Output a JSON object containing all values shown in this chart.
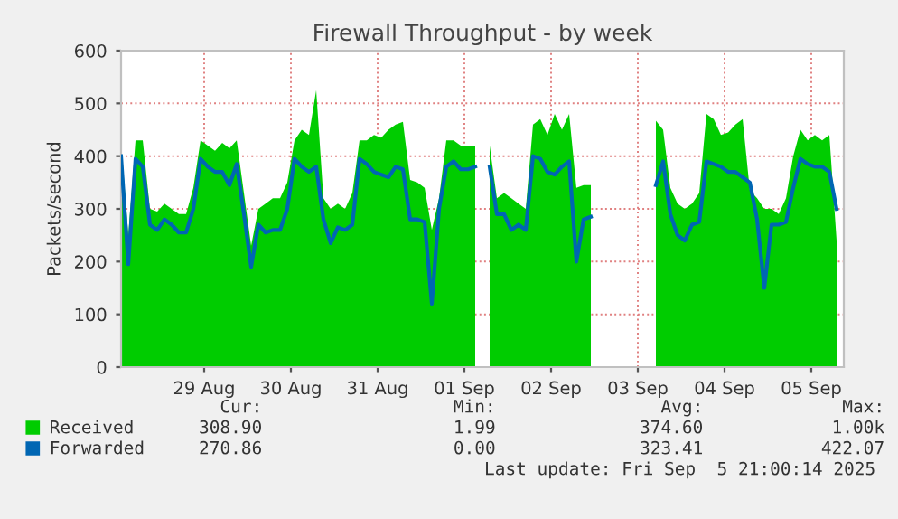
{
  "chart_data": {
    "type": "area",
    "title": "Firewall Throughput - by week",
    "ylabel": "Packets/second",
    "x": [
      "2025-08-28T13:00",
      "2025-08-28T15:00",
      "2025-08-28T17:00",
      "2025-08-28T19:00",
      "2025-08-28T21:00",
      "2025-08-28T23:00",
      "2025-08-29T01:00",
      "2025-08-29T03:00",
      "2025-08-29T05:00",
      "2025-08-29T07:00",
      "2025-08-29T09:00",
      "2025-08-29T11:00",
      "2025-08-29T13:00",
      "2025-08-29T15:00",
      "2025-08-29T17:00",
      "2025-08-29T19:00",
      "2025-08-29T21:00",
      "2025-08-29T23:00",
      "2025-08-30T01:00",
      "2025-08-30T03:00",
      "2025-08-30T05:00",
      "2025-08-30T07:00",
      "2025-08-30T09:00",
      "2025-08-30T11:00",
      "2025-08-30T13:00",
      "2025-08-30T15:00",
      "2025-08-30T17:00",
      "2025-08-30T19:00",
      "2025-08-30T21:00",
      "2025-08-30T23:00",
      "2025-08-31T01:00",
      "2025-08-31T03:00",
      "2025-08-31T05:00",
      "2025-08-31T07:00",
      "2025-08-31T09:00",
      "2025-08-31T11:00",
      "2025-08-31T13:00",
      "2025-08-31T15:00",
      "2025-08-31T17:00",
      "2025-08-31T19:00",
      "2025-08-31T21:00",
      "2025-08-31T23:00",
      "2025-09-01T01:00",
      "2025-09-01T03:00",
      "2025-09-01T05:00",
      "2025-09-01T07:00",
      "2025-09-01T09:00",
      "2025-09-01T11:00",
      "2025-09-01T13:00",
      "2025-09-01T15:00",
      "2025-09-01T17:00",
      "2025-09-01T19:00",
      "2025-09-01T21:00",
      "2025-09-01T23:00",
      "2025-09-02T01:00",
      "2025-09-02T03:00",
      "2025-09-02T05:00",
      "2025-09-02T07:00",
      "2025-09-02T09:00",
      "2025-09-02T11:00",
      "2025-09-02T13:00",
      "2025-09-02T15:00",
      "2025-09-02T17:00",
      "2025-09-02T19:00",
      "2025-09-02T21:00",
      "2025-09-02T23:00",
      "2025-09-03T01:00",
      "2025-09-03T03:00",
      "2025-09-03T05:00",
      "2025-09-03T07:00",
      "2025-09-03T09:00",
      "2025-09-03T11:00",
      "2025-09-03T13:00",
      "2025-09-03T15:00",
      "2025-09-03T17:00",
      "2025-09-03T19:00",
      "2025-09-03T21:00",
      "2025-09-03T23:00",
      "2025-09-04T01:00",
      "2025-09-04T03:00",
      "2025-09-04T05:00",
      "2025-09-04T07:00",
      "2025-09-04T09:00",
      "2025-09-04T11:00",
      "2025-09-04T13:00",
      "2025-09-04T15:00",
      "2025-09-04T17:00",
      "2025-09-04T19:00",
      "2025-09-04T21:00",
      "2025-09-04T23:00",
      "2025-09-05T01:00",
      "2025-09-05T03:00",
      "2025-09-05T05:00",
      "2025-09-05T07:00",
      "2025-09-05T09:00",
      "2025-09-05T11:00",
      "2025-09-05T13:00",
      "2025-09-05T15:00",
      "2025-09-05T17:00",
      "2025-09-05T19:00"
    ],
    "series": [
      {
        "name": "Received",
        "color": "#00cc00",
        "values": [
          427,
          250,
          430,
          430,
          300,
          295,
          310,
          300,
          290,
          290,
          340,
          430,
          420,
          410,
          425,
          415,
          430,
          330,
          230,
          300,
          310,
          320,
          320,
          350,
          430,
          450,
          440,
          525,
          320,
          300,
          310,
          300,
          330,
          430,
          430,
          440,
          435,
          450,
          460,
          465,
          355,
          350,
          340,
          260,
          320,
          430,
          430,
          420,
          420,
          420,
          null,
          420,
          320,
          330,
          320,
          310,
          300,
          460,
          470,
          440,
          480,
          450,
          480,
          340,
          345,
          345,
          null,
          null,
          null,
          null,
          null,
          null,
          null,
          null,
          467,
          450,
          340,
          310,
          300,
          310,
          330,
          480,
          470,
          440,
          445,
          460,
          470,
          335,
          320,
          300,
          300,
          290,
          320,
          400,
          450,
          430,
          440,
          430,
          440,
          240
        ]
      },
      {
        "name": "Forwarded",
        "type": "line",
        "color": "#0066b3",
        "values": [
          400,
          195,
          395,
          380,
          270,
          260,
          280,
          270,
          255,
          255,
          300,
          395,
          380,
          370,
          370,
          345,
          385,
          290,
          190,
          270,
          255,
          260,
          260,
          300,
          395,
          380,
          370,
          380,
          280,
          235,
          265,
          260,
          270,
          395,
          385,
          370,
          365,
          360,
          380,
          375,
          280,
          280,
          275,
          120,
          300,
          380,
          390,
          375,
          375,
          380,
          null,
          380,
          290,
          290,
          260,
          270,
          260,
          400,
          395,
          370,
          365,
          380,
          390,
          200,
          280,
          285,
          null,
          null,
          null,
          null,
          null,
          null,
          null,
          null,
          345,
          390,
          290,
          250,
          240,
          270,
          275,
          390,
          385,
          380,
          370,
          370,
          360,
          350,
          280,
          150,
          270,
          270,
          275,
          340,
          395,
          385,
          380,
          380,
          370,
          300
        ]
      }
    ],
    "xlim": [
      "2025-08-28T13:00",
      "2025-09-05T21:00"
    ],
    "xticks": [
      {
        "value": "2025-08-29T12:00",
        "label": "29 Aug"
      },
      {
        "value": "2025-08-30T12:00",
        "label": "30 Aug"
      },
      {
        "value": "2025-08-31T12:00",
        "label": "31 Aug"
      },
      {
        "value": "2025-09-01T12:00",
        "label": "01 Sep"
      },
      {
        "value": "2025-09-02T12:00",
        "label": "02 Sep"
      },
      {
        "value": "2025-09-03T12:00",
        "label": "03 Sep"
      },
      {
        "value": "2025-09-04T12:00",
        "label": "04 Sep"
      },
      {
        "value": "2025-09-05T12:00",
        "label": "05 Sep"
      }
    ],
    "ylim": [
      0,
      600
    ],
    "yticks": [
      0,
      100,
      200,
      300,
      400,
      500,
      600
    ],
    "grid": true,
    "legend": "bottom",
    "annotations": [
      "Cur:",
      "Min:",
      "Avg:",
      "Max:",
      "308.90",
      "1.99",
      "374.60",
      "1.00k",
      "270.86",
      "0.00",
      "323.41",
      "422.07",
      "Last update: Fri Sep  5 21:00:14 2025"
    ]
  }
}
